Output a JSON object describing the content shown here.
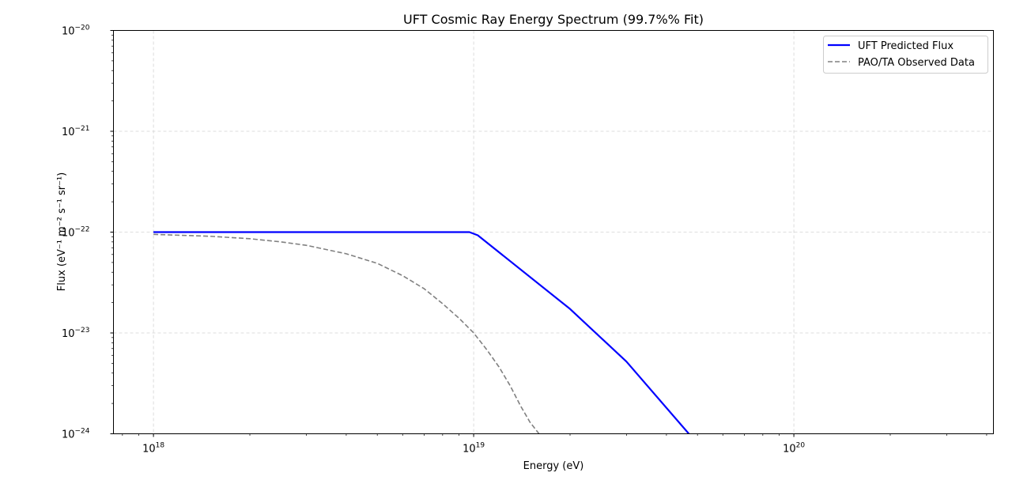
{
  "chart_data": {
    "type": "line",
    "title": "UFT Cosmic Ray Energy Spectrum (99.7%% Fit)",
    "xlabel": "Energy (eV)",
    "ylabel": "Flux (eV⁻¹ m⁻² s⁻¹ sr⁻¹)",
    "xscale": "log",
    "yscale": "log",
    "xlim": [
      7.5e+17,
      4.2e+20
    ],
    "ylim": [
      1e-24,
      1e-20
    ],
    "grid": true,
    "legend_position": "top-right",
    "x_ticks": [
      {
        "value": 1e+18,
        "base": "10",
        "exp": "18"
      },
      {
        "value": 1e+19,
        "base": "10",
        "exp": "19"
      },
      {
        "value": 1e+20,
        "base": "10",
        "exp": "20"
      }
    ],
    "y_ticks": [
      {
        "value": 1e-24,
        "base": "10",
        "exp": "−24"
      },
      {
        "value": 1e-23,
        "base": "10",
        "exp": "−23"
      },
      {
        "value": 1e-22,
        "base": "10",
        "exp": "−22"
      },
      {
        "value": 1e-21,
        "base": "10",
        "exp": "−21"
      },
      {
        "value": 1e-20,
        "base": "10",
        "exp": "−20"
      }
    ],
    "series": [
      {
        "name": "UFT Predicted Flux",
        "color": "#0000ff",
        "style": "solid",
        "x": [
          1e+18,
          2e+18,
          5e+18,
          9.7e+18,
          1.03e+19,
          2e+19,
          3e+19,
          4.7e+19
        ],
        "y": [
          1e-22,
          1e-22,
          1e-22,
          1e-22,
          9.3e-23,
          1.73e-23,
          5.2e-24,
          1e-24
        ]
      },
      {
        "name": "PAO/TA Observed Data",
        "color": "#808080",
        "style": "dashed",
        "x": [
          1e+18,
          1.5e+18,
          2e+18,
          2.5e+18,
          3e+18,
          4e+18,
          5e+18,
          6e+18,
          7e+18,
          8e+18,
          9e+18,
          1e+19,
          1.1e+19,
          1.2e+19,
          1.3e+19,
          1.4e+19,
          1.5e+19,
          1.6e+19
        ],
        "y": [
          9.5e-23,
          9.1e-23,
          8.6e-23,
          8e-23,
          7.4e-23,
          6.1e-23,
          4.9e-23,
          3.7e-23,
          2.75e-23,
          1.95e-23,
          1.4e-23,
          1e-23,
          6.8e-24,
          4.6e-24,
          3e-24,
          1.9e-24,
          1.3e-24,
          1e-24
        ]
      }
    ]
  }
}
